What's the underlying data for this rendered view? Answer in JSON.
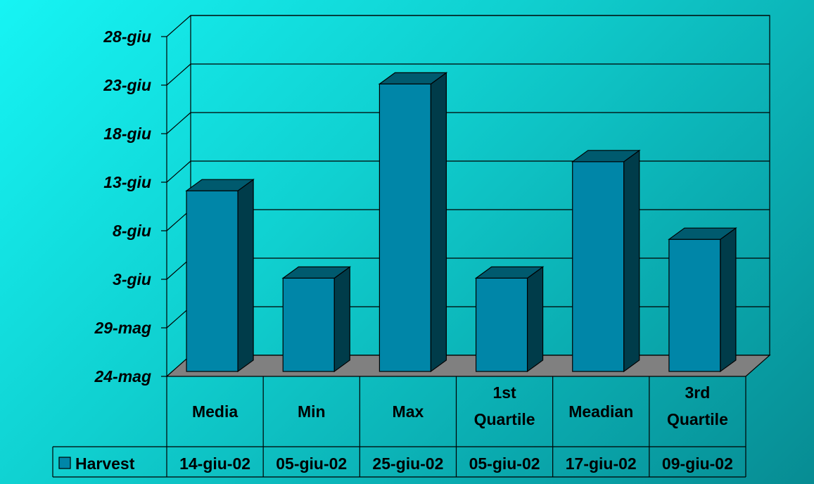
{
  "chart_data": {
    "type": "bar",
    "categories": [
      "Media",
      "Min",
      "Max",
      "1st Quartile",
      "Meadian",
      "3rd Quartile"
    ],
    "series": [
      {
        "name": "Harvest",
        "values": [
          "2002-06-14",
          "2002-06-05",
          "2002-06-25",
          "2002-06-05",
          "2002-06-17",
          "2002-06-09"
        ],
        "value_labels": [
          "14-giu-02",
          "05-giu-02",
          "25-giu-02",
          "05-giu-02",
          "17-giu-02",
          "09-giu-02"
        ],
        "color": "#0086a8"
      }
    ],
    "y_ticks": [
      "24-mag",
      "29-mag",
      "3-giu",
      "8-giu",
      "13-giu",
      "18-giu",
      "23-giu",
      "28-giu"
    ],
    "ylim": [
      "2002-05-24",
      "2002-06-28"
    ],
    "title": "",
    "xlabel": "",
    "ylabel": "",
    "grid": true,
    "three_d": true,
    "data_table": true,
    "floor_color": "#808080"
  }
}
